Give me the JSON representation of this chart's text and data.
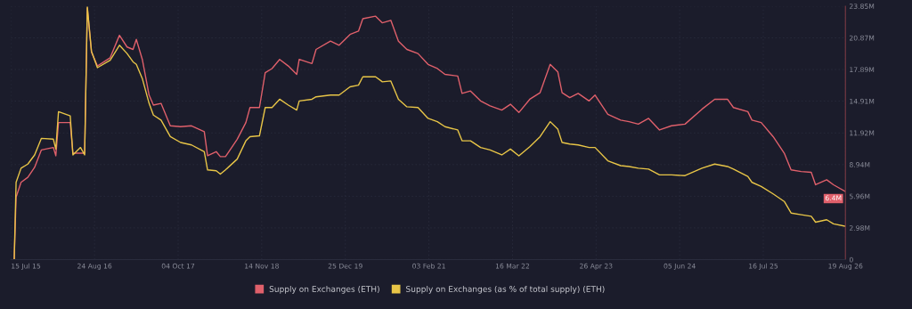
{
  "chart_data": {
    "type": "line",
    "x": [
      "2015-07-31",
      "2015-08-09",
      "2015-09-02",
      "2015-10-05",
      "2015-11-07",
      "2015-12-10",
      "2016-02-06",
      "2016-02-18",
      "2016-03-02",
      "2016-04-28",
      "2016-05-11",
      "2016-06-17",
      "2016-07-07",
      "2016-07-20",
      "2016-08-09",
      "2016-09-07",
      "2016-11-08",
      "2016-12-23",
      "2017-01-29",
      "2017-02-27",
      "2017-03-15",
      "2017-04-13",
      "2017-05-16",
      "2017-06-06",
      "2017-07-13",
      "2017-08-27",
      "2017-10-16",
      "2017-12-08",
      "2018-02-08",
      "2018-02-24",
      "2018-04-07",
      "2018-04-27",
      "2018-05-22",
      "2018-07-18",
      "2018-08-29",
      "2018-09-18",
      "2018-11-03",
      "2018-12-01",
      "2019-01-03",
      "2019-02-09",
      "2019-03-23",
      "2019-05-03",
      "2019-05-15",
      "2019-07-16",
      "2019-08-05",
      "2019-10-14",
      "2019-11-25",
      "2020-01-17",
      "2020-02-27",
      "2020-03-19",
      "2020-05-20",
      "2020-06-22",
      "2020-08-02",
      "2020-09-08",
      "2020-10-19",
      "2020-12-12",
      "2021-01-30",
      "2021-03-16",
      "2021-04-22",
      "2021-06-23",
      "2021-07-14",
      "2021-08-24",
      "2021-10-12",
      "2021-11-27",
      "2022-01-23",
      "2022-03-06",
      "2022-04-16",
      "2022-06-08",
      "2022-07-28",
      "2022-09-15",
      "2022-10-22",
      "2022-11-12",
      "2022-12-19",
      "2023-01-29",
      "2023-03-23",
      "2023-04-21",
      "2023-06-22",
      "2023-08-23",
      "2023-10-03",
      "2023-11-17",
      "2024-01-06",
      "2024-02-28",
      "2024-04-26",
      "2024-07-01",
      "2024-09-21",
      "2024-11-22",
      "2025-01-23",
      "2025-02-21",
      "2025-05-02",
      "2025-05-22",
      "2025-07-06",
      "2025-09-02",
      "2025-10-26",
      "2025-11-28",
      "2026-01-16",
      "2026-03-06",
      "2026-03-27",
      "2026-05-20",
      "2026-06-22",
      "2026-08-19"
    ],
    "series": [
      {
        "name": "Supply on Exchanges (ETH)",
        "color": "#e0606b",
        "values": [
          0.1,
          5.86,
          7.27,
          7.74,
          8.68,
          10.32,
          10.55,
          9.77,
          12.9,
          12.9,
          10.01,
          10.01,
          10.01,
          23.69,
          19.54,
          18.22,
          19.0,
          21.11,
          20.01,
          19.78,
          20.72,
          18.84,
          15.48,
          14.54,
          14.7,
          12.59,
          12.51,
          12.59,
          12.04,
          9.77,
          10.16,
          9.69,
          9.69,
          11.33,
          12.9,
          14.31,
          14.31,
          17.59,
          17.98,
          18.84,
          18.22,
          17.43,
          18.84,
          18.45,
          19.78,
          20.56,
          20.17,
          21.19,
          21.5,
          22.67,
          22.91,
          22.28,
          22.52,
          20.56,
          19.78,
          19.39,
          18.37,
          17.98,
          17.43,
          17.28,
          15.64,
          15.87,
          14.93,
          14.46,
          14.07,
          14.62,
          13.84,
          15.09,
          15.71,
          18.37,
          17.67,
          15.71,
          15.24,
          15.64,
          14.93,
          15.48,
          13.68,
          13.13,
          12.98,
          12.75,
          13.29,
          12.2,
          12.59,
          12.75,
          14.15,
          15.09,
          15.09,
          14.31,
          13.92,
          13.13,
          12.9,
          11.57,
          10.01,
          8.44,
          8.29,
          8.21,
          7.04,
          7.51,
          7.04,
          6.4
        ]
      },
      {
        "name": "Supply on Exchanges (as % of total supply) (ETH)",
        "color": "#e8c547",
        "values": [
          0.1,
          7.27,
          8.6,
          8.99,
          9.85,
          11.41,
          11.33,
          10.4,
          13.92,
          13.52,
          9.85,
          10.55,
          9.85,
          23.77,
          19.62,
          18.06,
          18.76,
          20.17,
          19.39,
          18.61,
          18.37,
          17.04,
          14.7,
          13.6,
          13.13,
          11.57,
          11.02,
          10.79,
          10.16,
          8.44,
          8.36,
          8.05,
          8.44,
          9.46,
          11.18,
          11.57,
          11.65,
          14.31,
          14.31,
          15.09,
          14.54,
          14.07,
          14.93,
          15.09,
          15.32,
          15.48,
          15.48,
          16.26,
          16.42,
          17.2,
          17.2,
          16.73,
          16.81,
          15.09,
          14.38,
          14.31,
          13.29,
          12.98,
          12.51,
          12.2,
          11.18,
          11.18,
          10.55,
          10.32,
          9.85,
          10.4,
          9.77,
          10.63,
          11.57,
          12.98,
          12.27,
          11.02,
          10.87,
          10.79,
          10.55,
          10.55,
          9.3,
          8.84,
          8.76,
          8.6,
          8.52,
          7.97,
          7.97,
          7.9,
          8.6,
          8.99,
          8.76,
          8.52,
          7.82,
          7.27,
          6.88,
          6.18,
          5.47,
          4.38,
          4.22,
          4.07,
          3.52,
          3.75,
          3.36,
          3.13
        ]
      }
    ],
    "xlim": [
      "2015-07-15",
      "2026-08-19"
    ],
    "xticks": [
      {
        "value": "2015-07-15",
        "label": "15 Jul 15"
      },
      {
        "value": "2016-08-24",
        "label": "24 Aug 16"
      },
      {
        "value": "2017-10-04",
        "label": "04 Oct 17"
      },
      {
        "value": "2018-11-14",
        "label": "14 Nov 18"
      },
      {
        "value": "2019-12-25",
        "label": "25 Dec 19"
      },
      {
        "value": "2021-02-03",
        "label": "03 Feb 21"
      },
      {
        "value": "2022-03-16",
        "label": "16 Mar 22"
      },
      {
        "value": "2023-04-26",
        "label": "26 Apr 23"
      },
      {
        "value": "2024-06-05",
        "label": "05 Jun 24"
      },
      {
        "value": "2025-07-16",
        "label": "16 Jul 25"
      },
      {
        "value": "2026-08-19",
        "label": "19 Aug 26"
      }
    ],
    "ylim": [
      0,
      23.85
    ],
    "yticks": [
      0,
      {
        "value": 2.98,
        "label": "2.98M"
      },
      {
        "value": 5.96,
        "label": "5.96M"
      },
      {
        "value": 8.94,
        "label": "8.94M"
      },
      {
        "value": 11.92,
        "label": "11.92M"
      },
      {
        "value": 14.91,
        "label": "14.91M"
      },
      {
        "value": 17.89,
        "label": "17.89M"
      },
      {
        "value": 20.87,
        "label": "20.87M"
      },
      {
        "value": 23.85,
        "label": "23.85M"
      }
    ],
    "annotations": [
      {
        "text": "6.4M",
        "x": "2026-08-19",
        "y": 6.4
      }
    ],
    "grid": true,
    "legend": "bottom",
    "marker": "none",
    "line_style": "solid"
  }
}
